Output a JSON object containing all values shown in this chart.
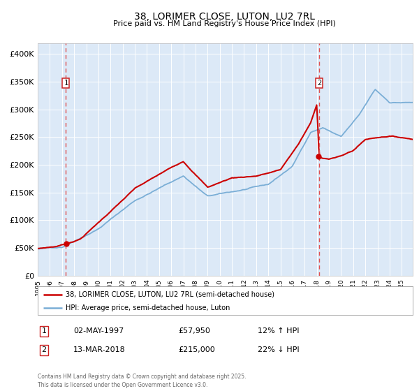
{
  "title": "38, LORIMER CLOSE, LUTON, LU2 7RL",
  "subtitle": "Price paid vs. HM Land Registry's House Price Index (HPI)",
  "bg_color": "#dce9f7",
  "line_color_property": "#cc0000",
  "line_color_hpi": "#7aaed6",
  "marker_color": "#cc0000",
  "dashed_line_color": "#e05050",
  "legend_label_property": "38, LORIMER CLOSE, LUTON, LU2 7RL (semi-detached house)",
  "legend_label_hpi": "HPI: Average price, semi-detached house, Luton",
  "annotation1_date": "02-MAY-1997",
  "annotation1_price": "£57,950",
  "annotation1_hpi": "12% ↑ HPI",
  "annotation2_date": "13-MAR-2018",
  "annotation2_price": "£215,000",
  "annotation2_hpi": "22% ↓ HPI",
  "footer": "Contains HM Land Registry data © Crown copyright and database right 2025.\nThis data is licensed under the Open Government Licence v3.0.",
  "ylim": [
    0,
    420000
  ],
  "yticks": [
    0,
    50000,
    100000,
    150000,
    200000,
    250000,
    300000,
    350000,
    400000
  ],
  "ytick_labels": [
    "£0",
    "£50K",
    "£100K",
    "£150K",
    "£200K",
    "£250K",
    "£300K",
    "£350K",
    "£400K"
  ],
  "sale1_year": 1997.33,
  "sale1_price": 57950,
  "sale2_year": 2018.19,
  "sale2_price": 215000,
  "xmin": 1995,
  "xmax": 2025.9
}
